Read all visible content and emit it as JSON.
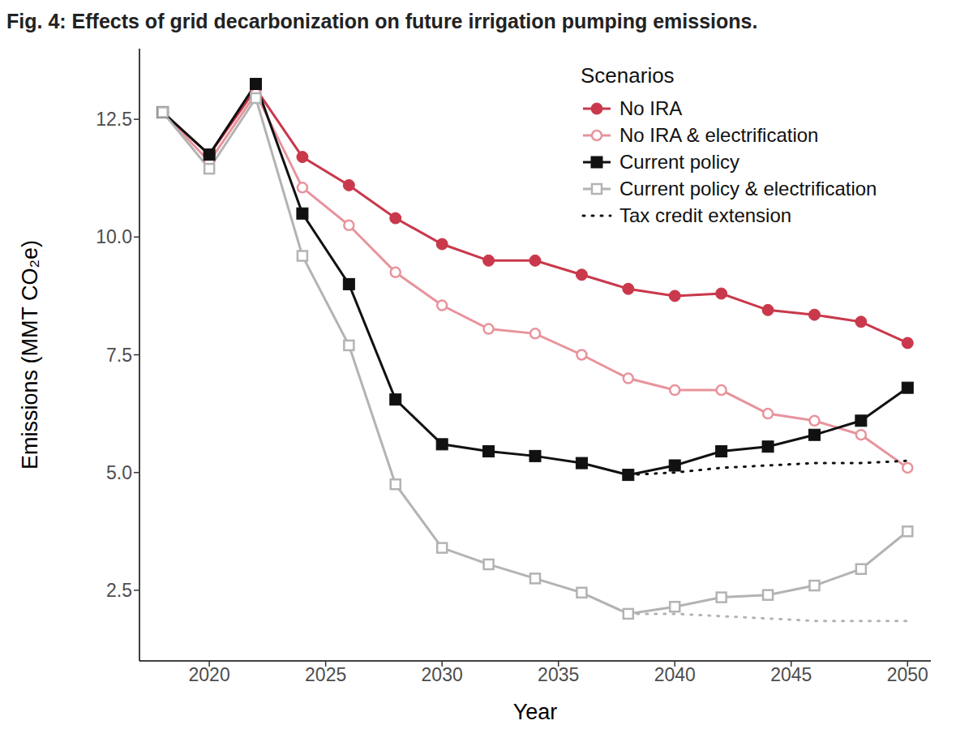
{
  "chart_data": {
    "type": "line",
    "title": "Fig. 4: Effects of grid decarbonization on future irrigation pumping emissions.",
    "x_label": "Year",
    "y_label": "Emissions (MMT CO₂e)",
    "legend_title": "Scenarios",
    "legend": "upper right",
    "grid": false,
    "x": [
      2018,
      2020,
      2022,
      2024,
      2026,
      2028,
      2030,
      2032,
      2034,
      2036,
      2038,
      2040,
      2042,
      2044,
      2046,
      2048,
      2050
    ],
    "xlim": [
      2017,
      2051
    ],
    "xticks": [
      2020,
      2025,
      2030,
      2035,
      2040,
      2045,
      2050
    ],
    "ylim": [
      1.0,
      14.0
    ],
    "yticks": [
      2.5,
      {
        "value": 5,
        "label": "5.0"
      },
      7.5,
      {
        "value": 10,
        "label": "10.0"
      },
      12.5
    ],
    "series": [
      {
        "name": "No IRA",
        "color": "#c9384b",
        "marker": "circle",
        "line_style": "solid",
        "values": [
          12.65,
          11.75,
          13.15,
          11.7,
          11.1,
          10.4,
          9.85,
          9.5,
          9.5,
          9.2,
          8.9,
          8.75,
          8.8,
          8.45,
          8.35,
          8.2,
          7.75
        ]
      },
      {
        "name": "No IRA & electrification",
        "color": "#e8939c",
        "marker": "circle_open",
        "line_style": "solid",
        "values": [
          12.65,
          11.6,
          13.05,
          11.05,
          10.25,
          9.25,
          8.55,
          8.05,
          7.95,
          7.5,
          7.0,
          6.75,
          6.75,
          6.25,
          6.1,
          5.8,
          5.1
        ]
      },
      {
        "name": "Current policy",
        "color": "#111111",
        "marker": "square",
        "line_style": "solid",
        "values": [
          12.65,
          11.75,
          13.25,
          10.5,
          9.0,
          6.55,
          5.6,
          5.45,
          5.35,
          5.2,
          4.95,
          5.15,
          5.45,
          5.55,
          5.8,
          6.1,
          6.8
        ]
      },
      {
        "name": "Current policy & electrification",
        "color": "#b3b3b3",
        "marker": "square_open",
        "line_style": "solid",
        "values": [
          12.65,
          11.45,
          12.95,
          9.6,
          7.7,
          4.75,
          3.4,
          3.05,
          2.75,
          2.45,
          2.0,
          2.15,
          2.35,
          2.4,
          2.6,
          2.95,
          3.75
        ]
      },
      {
        "name": "Tax credit extension",
        "color": "#111111",
        "marker": "none",
        "line_style": "dotted",
        "values": [
          null,
          null,
          null,
          null,
          null,
          null,
          null,
          null,
          null,
          null,
          4.95,
          5.0,
          5.1,
          5.15,
          5.2,
          5.2,
          5.25
        ]
      },
      {
        "name": "Tax credit extension",
        "color": "#b3b3b3",
        "marker": "none",
        "line_style": "dotted",
        "values": [
          null,
          null,
          null,
          null,
          null,
          null,
          null,
          null,
          null,
          null,
          2.0,
          2.0,
          1.95,
          1.9,
          1.85,
          1.85,
          1.85
        ]
      }
    ]
  }
}
